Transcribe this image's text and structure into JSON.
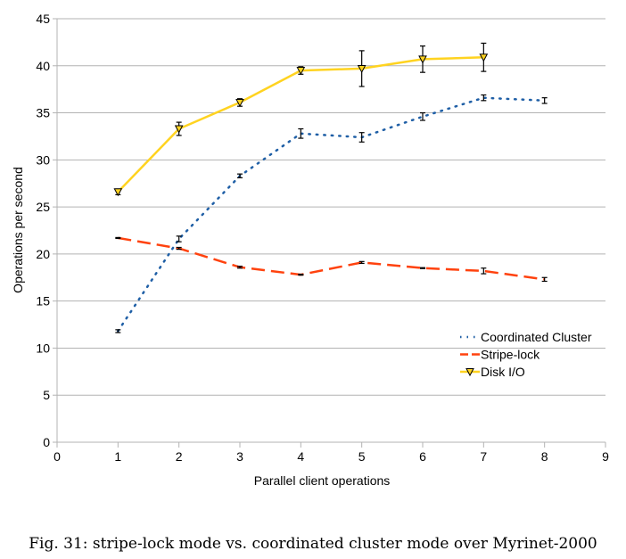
{
  "caption": "Fig. 31: stripe-lock mode vs. coordinated cluster mode over Myrinet-2000",
  "chart_data": {
    "type": "line",
    "xlabel": "Parallel client operations",
    "ylabel": "Operations per second",
    "xlim": [
      0,
      9
    ],
    "ylim": [
      0,
      45
    ],
    "x_ticks": [
      0,
      1,
      2,
      3,
      4,
      5,
      6,
      7,
      8,
      9
    ],
    "y_ticks": [
      0,
      5,
      10,
      15,
      20,
      25,
      30,
      35,
      40,
      45
    ],
    "grid": "horizontal",
    "legend_position": "right-lower",
    "series": [
      {
        "name": "Coordinated Cluster",
        "style": "dotted",
        "color": "#1f5fa6",
        "x": [
          1,
          2,
          3,
          4,
          5,
          6,
          7,
          8
        ],
        "y": [
          11.8,
          21.6,
          28.3,
          32.8,
          32.4,
          34.6,
          36.6,
          36.3
        ],
        "err": [
          0.15,
          0.3,
          0.2,
          0.5,
          0.5,
          0.4,
          0.3,
          0.3
        ]
      },
      {
        "name": "Stripe-lock",
        "style": "dashed",
        "color": "#ff420e",
        "x": [
          1,
          2,
          3,
          4,
          5,
          6,
          7,
          8
        ],
        "y": [
          21.7,
          20.6,
          18.6,
          17.8,
          19.1,
          18.5,
          18.2,
          17.3
        ],
        "err": [
          0.05,
          0.1,
          0.1,
          0.05,
          0.1,
          0.05,
          0.3,
          0.2
        ]
      },
      {
        "name": "Disk I/O",
        "style": "solid",
        "marker": "triangle-down",
        "color": "#ffd320",
        "x": [
          1,
          2,
          3,
          4,
          5,
          6,
          7
        ],
        "y": [
          26.6,
          33.3,
          36.1,
          39.5,
          39.7,
          40.7,
          40.9
        ],
        "err": [
          0.3,
          0.7,
          0.4,
          0.4,
          1.9,
          1.4,
          1.5
        ]
      }
    ]
  }
}
